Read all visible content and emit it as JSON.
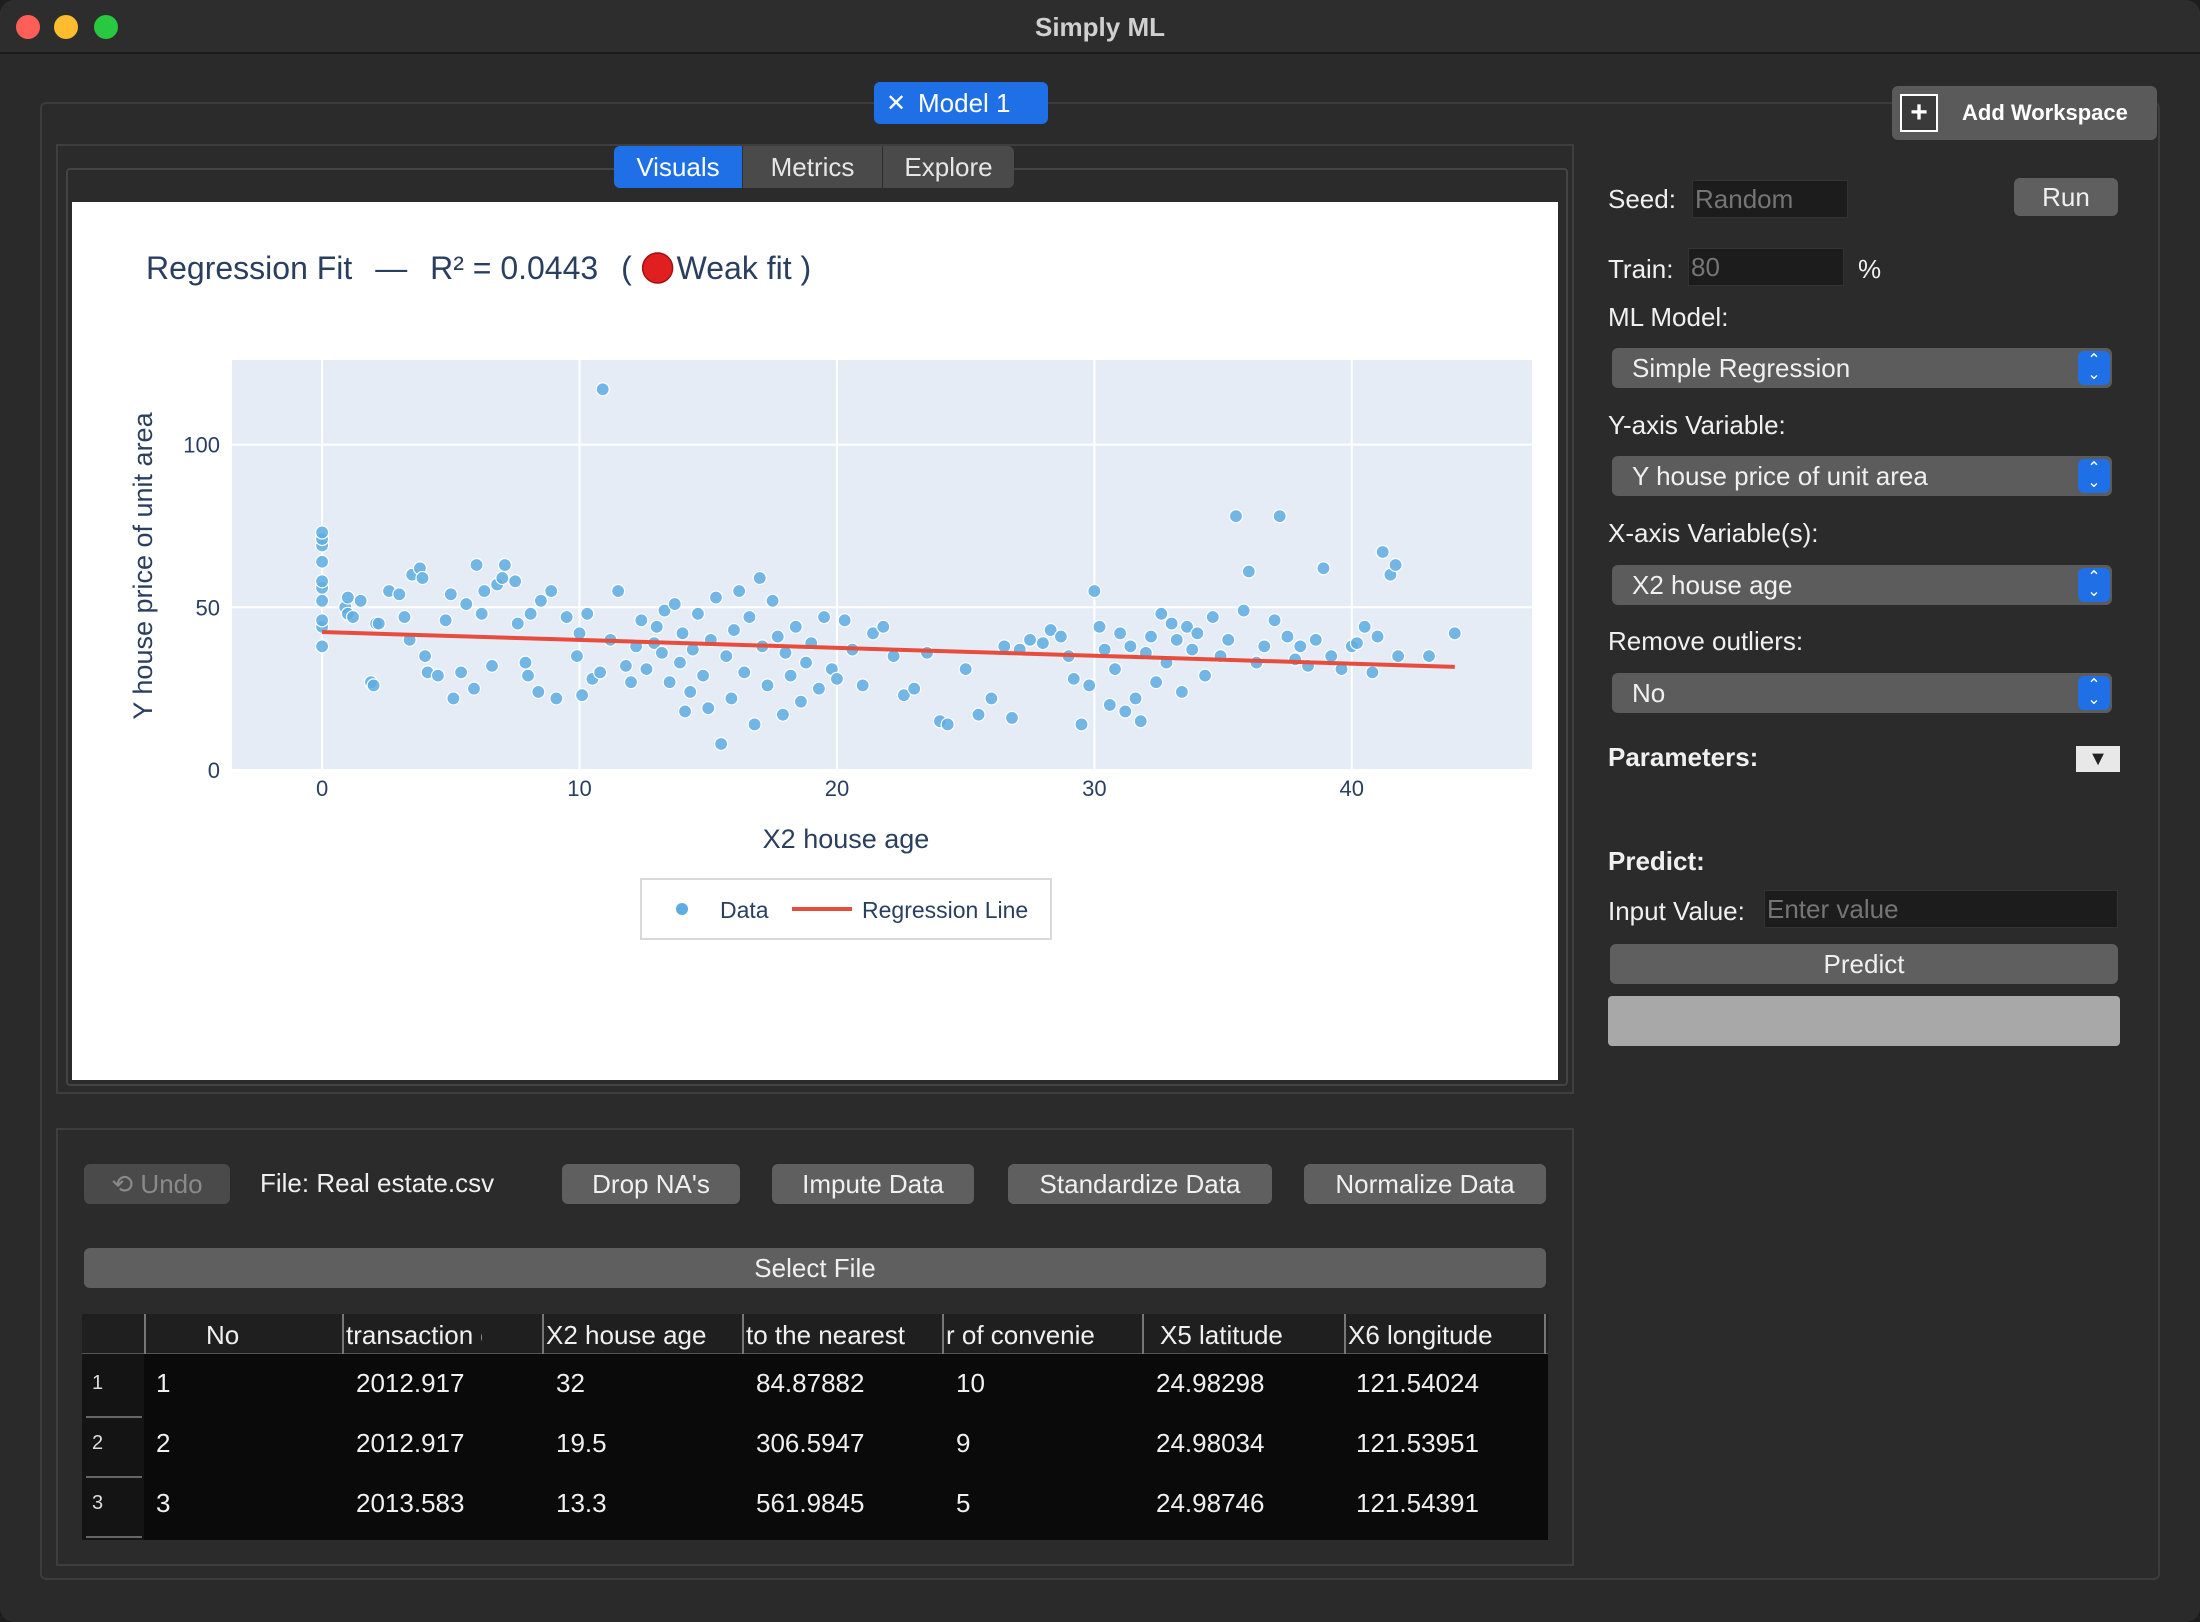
{
  "window": {
    "title": "Simply ML"
  },
  "model_tab": {
    "close_glyph": "✕",
    "label": "Model 1"
  },
  "add_workspace": {
    "glyph": "+",
    "label": "Add Workspace"
  },
  "view_tabs": [
    {
      "label": "Visuals",
      "active": true
    },
    {
      "label": "Metrics",
      "active": false
    },
    {
      "label": "Explore",
      "active": false
    }
  ],
  "chart_data": {
    "type": "scatter",
    "title": "Regression Fit  —  R² = 0.0443  (🔴 Weak fit)",
    "title_main": "Regression Fit",
    "title_sep": "—",
    "title_r2": "R² = 0.0443",
    "title_verdict": "Weak fit",
    "xlabel": "X2 house age",
    "ylabel": "Y house price of unit area",
    "xlim": [
      -3.5,
      47
    ],
    "ylim": [
      0,
      126
    ],
    "xticks": [
      0,
      10,
      20,
      30,
      40
    ],
    "yticks": [
      0,
      50,
      100
    ],
    "grid": true,
    "legend": {
      "position": "bottom-center",
      "entries": [
        "Data",
        "Regression Line"
      ]
    },
    "series": [
      {
        "name": "Data",
        "mode": "markers",
        "color": "#5dade2",
        "points": [
          [
            0,
            38
          ],
          [
            0,
            44
          ],
          [
            0,
            46
          ],
          [
            0,
            52
          ],
          [
            0,
            56
          ],
          [
            0,
            58
          ],
          [
            0,
            64
          ],
          [
            0,
            69
          ],
          [
            0,
            71
          ],
          [
            0,
            73
          ],
          [
            0.9,
            50
          ],
          [
            1,
            53
          ],
          [
            1,
            48
          ],
          [
            1.2,
            47
          ],
          [
            1.5,
            52
          ],
          [
            1.9,
            27
          ],
          [
            2,
            26
          ],
          [
            2.1,
            45
          ],
          [
            2.2,
            45
          ],
          [
            2.6,
            55
          ],
          [
            3,
            54
          ],
          [
            3.2,
            47
          ],
          [
            3.4,
            40
          ],
          [
            3.5,
            60
          ],
          [
            3.8,
            62
          ],
          [
            3.9,
            59
          ],
          [
            4,
            35
          ],
          [
            4.1,
            30
          ],
          [
            4.5,
            29
          ],
          [
            4.8,
            46
          ],
          [
            5,
            54
          ],
          [
            5.1,
            22
          ],
          [
            5.4,
            30
          ],
          [
            5.6,
            51
          ],
          [
            5.9,
            25
          ],
          [
            6,
            63
          ],
          [
            6.2,
            48
          ],
          [
            6.3,
            55
          ],
          [
            6.6,
            32
          ],
          [
            6.8,
            57
          ],
          [
            7,
            59
          ],
          [
            7.1,
            63
          ],
          [
            7.5,
            58
          ],
          [
            7.6,
            45
          ],
          [
            7.9,
            33
          ],
          [
            8,
            29
          ],
          [
            8.1,
            48
          ],
          [
            8.4,
            24
          ],
          [
            8.5,
            52
          ],
          [
            8.9,
            55
          ],
          [
            9.1,
            22
          ],
          [
            9.5,
            47
          ],
          [
            9.9,
            35
          ],
          [
            10,
            42
          ],
          [
            10.1,
            23
          ],
          [
            10.3,
            48
          ],
          [
            10.5,
            28
          ],
          [
            10.8,
            30
          ],
          [
            10.9,
            117
          ],
          [
            11.2,
            40
          ],
          [
            11.5,
            55
          ],
          [
            11.8,
            32
          ],
          [
            12,
            27
          ],
          [
            12.2,
            38
          ],
          [
            12.4,
            46
          ],
          [
            12.6,
            31
          ],
          [
            12.9,
            39
          ],
          [
            13,
            44
          ],
          [
            13.2,
            36
          ],
          [
            13.3,
            49
          ],
          [
            13.5,
            27
          ],
          [
            13.7,
            51
          ],
          [
            13.9,
            33
          ],
          [
            14,
            42
          ],
          [
            14.1,
            18
          ],
          [
            14.3,
            24
          ],
          [
            14.4,
            37
          ],
          [
            14.6,
            48
          ],
          [
            14.8,
            29
          ],
          [
            15,
            19
          ],
          [
            15.1,
            40
          ],
          [
            15.3,
            53
          ],
          [
            15.5,
            8
          ],
          [
            15.7,
            35
          ],
          [
            15.9,
            22
          ],
          [
            16,
            43
          ],
          [
            16.2,
            55
          ],
          [
            16.4,
            30
          ],
          [
            16.6,
            47
          ],
          [
            16.8,
            14
          ],
          [
            17,
            59
          ],
          [
            17.1,
            38
          ],
          [
            17.3,
            26
          ],
          [
            17.5,
            52
          ],
          [
            17.7,
            41
          ],
          [
            17.9,
            17
          ],
          [
            18,
            36
          ],
          [
            18.2,
            29
          ],
          [
            18.4,
            44
          ],
          [
            18.6,
            21
          ],
          [
            18.8,
            33
          ],
          [
            19,
            39
          ],
          [
            19.3,
            25
          ],
          [
            19.5,
            47
          ],
          [
            19.8,
            31
          ],
          [
            20,
            28
          ],
          [
            20.3,
            46
          ],
          [
            20.6,
            37
          ],
          [
            21,
            26
          ],
          [
            21.4,
            42
          ],
          [
            21.8,
            44
          ],
          [
            22.2,
            35
          ],
          [
            22.6,
            23
          ],
          [
            23,
            25
          ],
          [
            23.5,
            36
          ],
          [
            24,
            15
          ],
          [
            24.3,
            14
          ],
          [
            25,
            31
          ],
          [
            25.5,
            17
          ],
          [
            26,
            22
          ],
          [
            26.5,
            38
          ],
          [
            26.8,
            16
          ],
          [
            27.1,
            37
          ],
          [
            27.5,
            40
          ],
          [
            28,
            39
          ],
          [
            28.3,
            43
          ],
          [
            28.7,
            41
          ],
          [
            29,
            35
          ],
          [
            29.2,
            28
          ],
          [
            29.5,
            14
          ],
          [
            29.8,
            26
          ],
          [
            30,
            55
          ],
          [
            30.2,
            44
          ],
          [
            30.4,
            37
          ],
          [
            30.6,
            20
          ],
          [
            30.8,
            31
          ],
          [
            31,
            42
          ],
          [
            31.2,
            18
          ],
          [
            31.4,
            38
          ],
          [
            31.6,
            22
          ],
          [
            31.8,
            15
          ],
          [
            32,
            36
          ],
          [
            32.2,
            41
          ],
          [
            32.4,
            27
          ],
          [
            32.6,
            48
          ],
          [
            32.8,
            33
          ],
          [
            33,
            45
          ],
          [
            33.2,
            40
          ],
          [
            33.4,
            24
          ],
          [
            33.6,
            44
          ],
          [
            33.8,
            37
          ],
          [
            34,
            42
          ],
          [
            34.3,
            29
          ],
          [
            34.6,
            47
          ],
          [
            34.9,
            35
          ],
          [
            35.2,
            40
          ],
          [
            35.5,
            78
          ],
          [
            35.8,
            49
          ],
          [
            36,
            61
          ],
          [
            36.3,
            33
          ],
          [
            36.6,
            38
          ],
          [
            37,
            46
          ],
          [
            37.2,
            78
          ],
          [
            37.5,
            41
          ],
          [
            37.8,
            34
          ],
          [
            38,
            38
          ],
          [
            38.3,
            32
          ],
          [
            38.6,
            40
          ],
          [
            38.9,
            62
          ],
          [
            39.2,
            35
          ],
          [
            39.6,
            31
          ],
          [
            40,
            38
          ],
          [
            40.2,
            39
          ],
          [
            40.5,
            44
          ],
          [
            40.8,
            30
          ],
          [
            41,
            41
          ],
          [
            41.2,
            67
          ],
          [
            41.5,
            60
          ],
          [
            41.7,
            63
          ],
          [
            41.8,
            35
          ],
          [
            43,
            35
          ],
          [
            44,
            42
          ]
        ]
      },
      {
        "name": "Regression Line",
        "mode": "line",
        "color": "#e74c3c",
        "points": [
          [
            0,
            42.4
          ],
          [
            44,
            31.7
          ]
        ]
      }
    ]
  },
  "toolbar": {
    "undo_label": "⟲ Undo",
    "file_label": "File: Real estate.csv",
    "drop_na_label": "Drop NA's",
    "impute_label": "Impute Data",
    "standardize_label": "Standardize Data",
    "normalize_label": "Normalize Data",
    "select_file_label": "Select File"
  },
  "table": {
    "columns": [
      "No",
      "transaction d",
      "X2 house age",
      "to the nearest",
      "r of convenie",
      "X5 latitude",
      "X6 longitude"
    ],
    "rows": [
      {
        "index": "1",
        "cells": [
          "1",
          "2012.917",
          "32",
          "84.87882",
          "10",
          "24.98298",
          "121.54024"
        ]
      },
      {
        "index": "2",
        "cells": [
          "2",
          "2012.917",
          "19.5",
          "306.5947",
          "9",
          "24.98034",
          "121.53951"
        ]
      },
      {
        "index": "3",
        "cells": [
          "3",
          "2013.583",
          "13.3",
          "561.9845",
          "5",
          "24.98746",
          "121.54391"
        ]
      }
    ]
  },
  "controls": {
    "seed_label": "Seed:",
    "seed_placeholder": "Random",
    "run_label": "Run",
    "train_label": "Train:",
    "train_placeholder": "80",
    "train_unit": "%",
    "ml_model_label": "ML Model:",
    "ml_model_value": "Simple Regression",
    "y_axis_label": "Y-axis Variable:",
    "y_axis_value": "Y house price of unit area",
    "x_axis_label": "X-axis Variable(s):",
    "x_axis_value": "X2 house age",
    "outliers_label": "Remove outliers:",
    "outliers_value": "No",
    "parameters_label": "Parameters:",
    "parameters_toggle": "▼",
    "predict_heading": "Predict:",
    "input_value_label": "Input Value:",
    "input_placeholder": "Enter value",
    "predict_button": "Predict",
    "select_chevron_up": "⌃",
    "select_chevron_down": "⌄"
  }
}
